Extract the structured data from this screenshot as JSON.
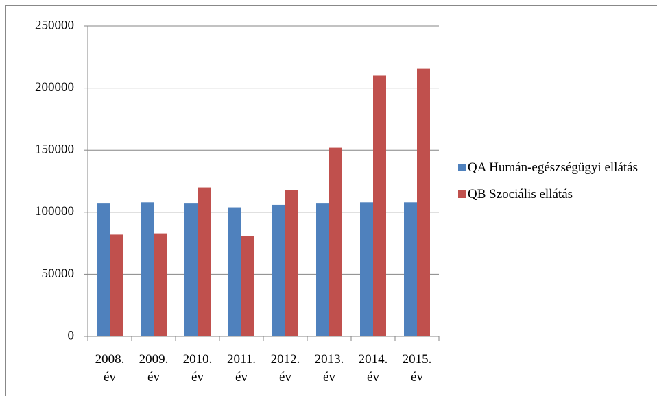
{
  "chart_data": {
    "type": "bar",
    "categories": [
      "2008. év",
      "2009. év",
      "2010. év",
      "2011. év",
      "2012. év",
      "2013. év",
      "2014. év",
      "2015. év"
    ],
    "series": [
      {
        "name": "QA Humán-egészségügyi ellátás",
        "color": "#4f81bd",
        "values": [
          107000,
          108000,
          107000,
          104000,
          106000,
          107000,
          108000,
          108000
        ]
      },
      {
        "name": "QB Szociális ellátás",
        "color": "#c0504d",
        "values": [
          82000,
          83000,
          120000,
          81000,
          118000,
          152000,
          210000,
          216000
        ]
      }
    ],
    "ylim": [
      0,
      250000
    ],
    "yticks": [
      0,
      50000,
      100000,
      150000,
      200000,
      250000
    ],
    "grid": true,
    "legend": "right"
  }
}
